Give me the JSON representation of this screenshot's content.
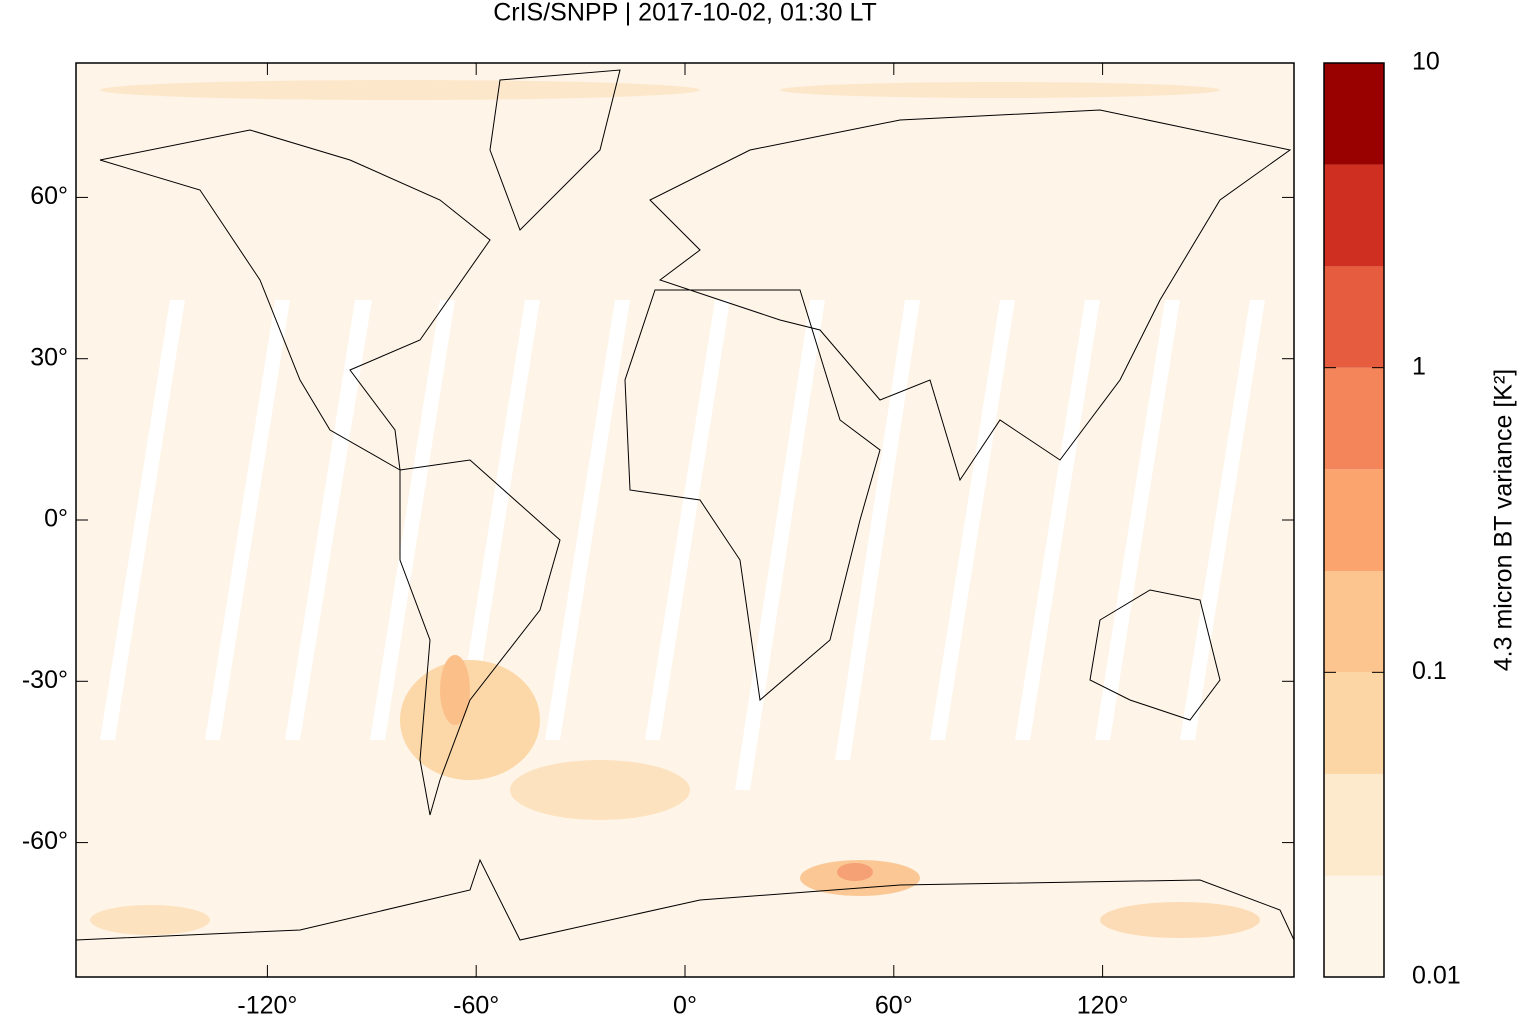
{
  "chart_data": {
    "type": "map",
    "title": "CrIS/SNPP | 2017-10-02, 01:30 LT",
    "xlim": [
      -175,
      175
    ],
    "ylim": [
      -85,
      85
    ],
    "xticks": [
      {
        "value": -120,
        "label": "-120°"
      },
      {
        "value": -60,
        "label": "-60°"
      },
      {
        "value": 0,
        "label": "0°"
      },
      {
        "value": 60,
        "label": "60°"
      },
      {
        "value": 120,
        "label": "120°"
      }
    ],
    "yticks": [
      {
        "value": -60,
        "label": "-60°"
      },
      {
        "value": -30,
        "label": "-30°"
      },
      {
        "value": 0,
        "label": "0°"
      },
      {
        "value": 30,
        "label": "30°"
      },
      {
        "value": 60,
        "label": "60°"
      }
    ],
    "colorbar": {
      "label": "4.3 micron BT variance [K²]",
      "log": true,
      "clim": [
        0.01,
        10
      ],
      "ticks": [
        0.01,
        0.1,
        1,
        10
      ],
      "levels": [
        0.01,
        0.0215,
        0.0464,
        0.1,
        0.215,
        0.464,
        1,
        2.15,
        4.64,
        10
      ],
      "colors": [
        "#fef5e9",
        "#fde9cc",
        "#fdd6a6",
        "#fcc48e",
        "#fca46d",
        "#f4855a",
        "#e55c3f",
        "#cf2f20",
        "#990000"
      ]
    }
  }
}
